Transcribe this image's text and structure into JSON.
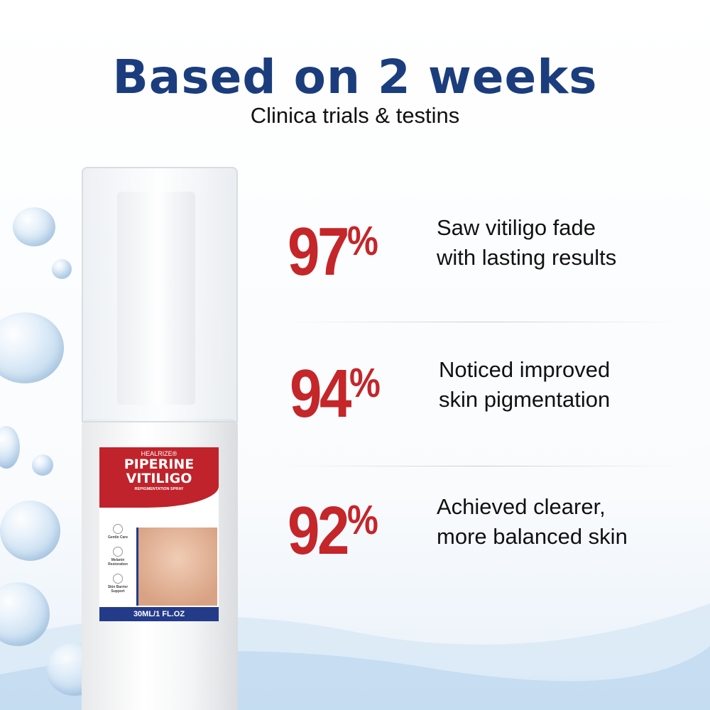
{
  "header": {
    "title": "Based on 2 weeks",
    "subtitle": "Clinica trials & testins"
  },
  "stats": [
    {
      "value": "97",
      "unit": "%",
      "line1": "Saw vitiligo fade",
      "line2": "with lasting results"
    },
    {
      "value": "94",
      "unit": "%",
      "line1": "Noticed improved",
      "line2": "skin pigmentation"
    },
    {
      "value": "92",
      "unit": "%",
      "line1": "Achieved clearer,",
      "line2": "more balanced skin"
    }
  ],
  "product": {
    "brand": "HEALRIZE®",
    "name_line1": "PIPERINE",
    "name_line2": "VITILIGO",
    "type": "REPIGMENTATION SPRAY",
    "features": [
      "Gentle Care",
      "Melanin Restoration",
      "Skin Barrier Support"
    ],
    "volume": "30ML/1 FL.OZ"
  },
  "colors": {
    "title": "#1b3d7d",
    "accent": "#c4262a",
    "label_red": "#c0232b",
    "label_blue": "#243b8a"
  }
}
